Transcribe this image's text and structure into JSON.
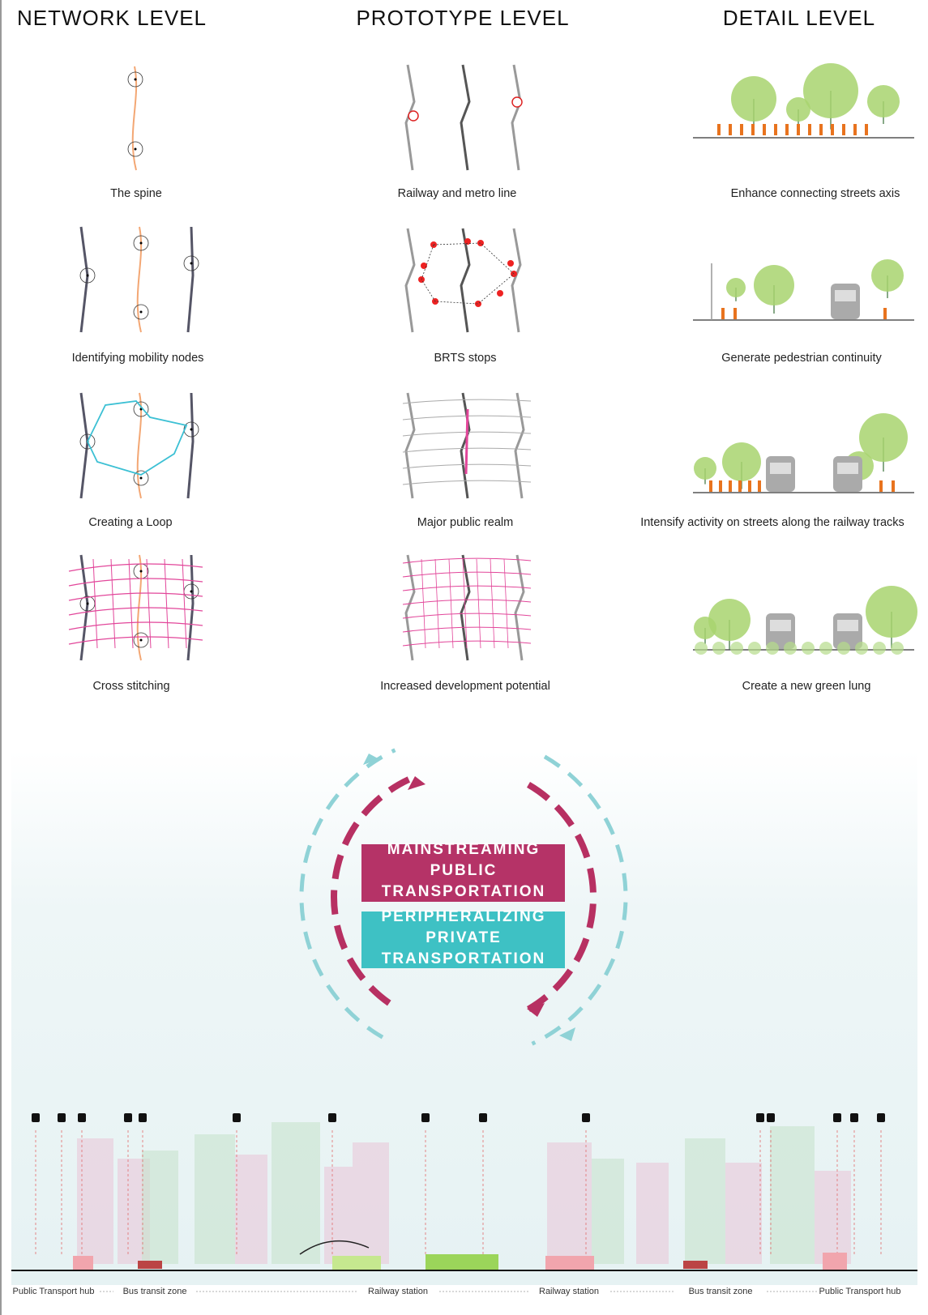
{
  "headers": [
    "NETWORK LEVEL",
    "PROTOTYPE LEVEL",
    "DETAIL LEVEL"
  ],
  "columns": [
    {
      "captions": [
        "The spine",
        "Identifying mobility nodes",
        "Creating a Loop",
        "Cross stitching"
      ]
    },
    {
      "captions": [
        "Railway and metro line",
        "BRTS stops",
        "Major public realm",
        "Increased development potential"
      ]
    },
    {
      "captions": [
        "Enhance connecting streets axis",
        "Generate pedestrian continuity",
        "Intensify activity on streets along the railway tracks",
        "Create a new green lung"
      ]
    }
  ],
  "loop": {
    "public_lines": [
      "MAINSTREAMING",
      "PUBLIC",
      "TRANSPORTATION"
    ],
    "private_lines": [
      "PERIPHERALIZING",
      "PRIVATE",
      "TRANSPORTATION"
    ]
  },
  "section_labels": [
    "Public Transport hub",
    "Bus transit zone",
    "Railway station",
    "Railway station",
    "Bus transit zone",
    "Public Transport hub"
  ]
}
